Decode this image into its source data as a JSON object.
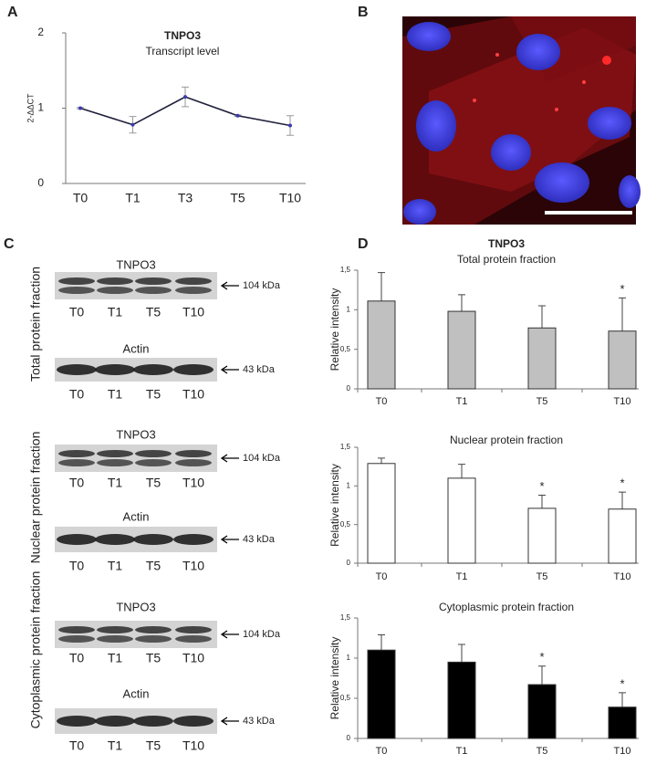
{
  "panel_labels": [
    "A",
    "B",
    "C",
    "D"
  ],
  "chart_data": [
    {
      "type": "line",
      "title": "TNPO3",
      "subtitle": "Transcript level",
      "y_label": "2-ΔΔCT",
      "categories": [
        "T0",
        "T1",
        "T3",
        "T5",
        "T10"
      ],
      "values": [
        1.0,
        0.78,
        1.15,
        0.9,
        0.77
      ],
      "errors": [
        0.01,
        0.11,
        0.13,
        0.01,
        0.13
      ],
      "color": "#1f1f3a",
      "marker_color": "#3b3bb0",
      "ylim": [
        0,
        2
      ],
      "yticks": [
        0,
        1,
        2
      ]
    },
    {
      "type": "bar",
      "title": "TNPO3",
      "subtitle": "Total protein fraction",
      "y_label": "Relative intensity",
      "categories": [
        "T0",
        "T1",
        "T5",
        "T10"
      ],
      "values": [
        1.11,
        0.98,
        0.77,
        0.73
      ],
      "errors": [
        0.36,
        0.21,
        0.28,
        0.42
      ],
      "significance": [
        null,
        null,
        null,
        "*"
      ],
      "color": "#c0c0c0",
      "ylim": [
        0,
        1.5
      ],
      "yticks": [
        0,
        {
          "value": 0.5,
          "label": "0,5"
        },
        1,
        {
          "value": 1.5,
          "label": "1,5"
        }
      ]
    },
    {
      "type": "bar",
      "subtitle": "Nuclear protein fraction",
      "y_label": "Relative intensity",
      "categories": [
        "T0",
        "T1",
        "T5",
        "T10"
      ],
      "values": [
        1.29,
        1.1,
        0.71,
        0.7
      ],
      "errors": [
        0.07,
        0.18,
        0.17,
        0.22
      ],
      "significance": [
        null,
        null,
        "*",
        "*"
      ],
      "color": "#ffffff",
      "ylim": [
        0,
        1.5
      ],
      "yticks": [
        0,
        {
          "value": 0.5,
          "label": "0,5"
        },
        1,
        {
          "value": 1.5,
          "label": "1,5"
        }
      ]
    },
    {
      "type": "bar",
      "subtitle": "Cytoplasmic protein fraction",
      "y_label": "Relative intensity",
      "categories": [
        "T0",
        "T1",
        "T5",
        "T10"
      ],
      "values": [
        1.1,
        0.95,
        0.67,
        0.39
      ],
      "errors": [
        0.19,
        0.22,
        0.23,
        0.18
      ],
      "significance": [
        null,
        null,
        "*",
        "*"
      ],
      "color": "#000000",
      "ylim": [
        0,
        1.5
      ],
      "yticks": [
        0,
        {
          "value": 0.5,
          "label": "0,5"
        },
        1,
        {
          "value": 1.5,
          "label": "1,5"
        }
      ]
    }
  ],
  "blots": [
    {
      "label": "Total protein fraction",
      "panels": [
        {
          "protein": "TNPO3",
          "size": "104 kDa",
          "lanes": [
            "T0",
            "T1",
            "T5",
            "T10"
          ]
        },
        {
          "protein": "Actin",
          "size": "43 kDa",
          "lanes": [
            "T0",
            "T1",
            "T5",
            "T10"
          ]
        }
      ]
    },
    {
      "label": "Nuclear protein fraction",
      "panels": [
        {
          "protein": "TNPO3",
          "size": "104 kDa",
          "lanes": [
            "T0",
            "T1",
            "T5",
            "T10"
          ]
        },
        {
          "protein": "Actin",
          "size": "43 kDa",
          "lanes": [
            "T0",
            "T1",
            "T5",
            "T10"
          ]
        }
      ]
    },
    {
      "label": "Cytoplasmic protein fraction",
      "panels": [
        {
          "protein": "TNPO3",
          "size": "104 kDa",
          "lanes": [
            "T0",
            "T1",
            "T5",
            "T10"
          ]
        },
        {
          "protein": "Actin",
          "size": "43 kDa",
          "lanes": [
            "T0",
            "T1",
            "T5",
            "T10"
          ]
        }
      ]
    }
  ]
}
